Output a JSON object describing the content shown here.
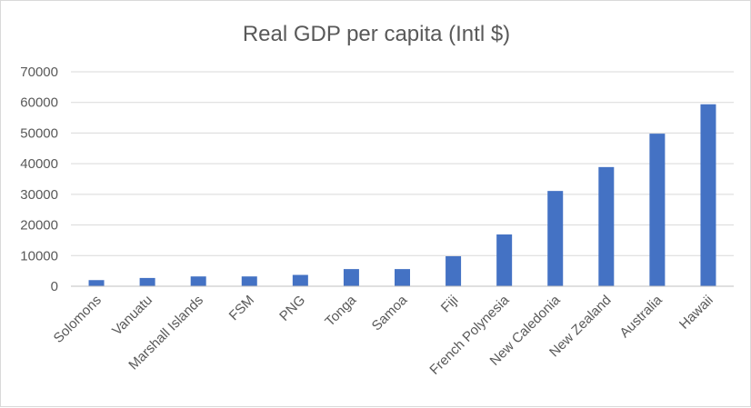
{
  "chart_data": {
    "type": "bar",
    "title": "Real GDP per capita (Intl $)",
    "xlabel": "",
    "ylabel": "",
    "ylim": [
      0,
      70000
    ],
    "yticks": [
      0,
      10000,
      20000,
      30000,
      40000,
      50000,
      60000,
      70000
    ],
    "grid": true,
    "legend": "none",
    "categories": [
      "Solomons",
      "Vanuatu",
      "Marshall Islands",
      "FSM",
      "PNG",
      "Tonga",
      "Samoa",
      "Fiji",
      "French Polynesia",
      "New Caledonia",
      "New Zealand",
      "Australia",
      "Hawaii"
    ],
    "values": [
      2000,
      2700,
      3200,
      3200,
      3700,
      5600,
      5600,
      9800,
      16900,
      31100,
      38900,
      49800,
      59400
    ],
    "colors": {
      "bar": "#4472c4",
      "grid": "#d9d9d9",
      "text": "#595959"
    }
  }
}
